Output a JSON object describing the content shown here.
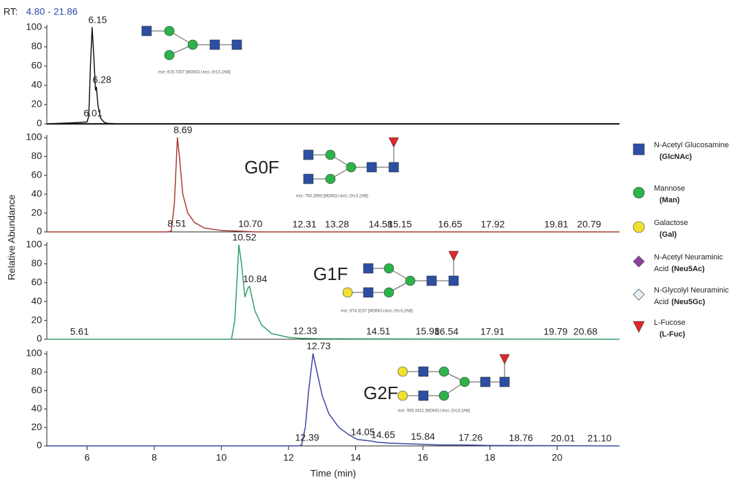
{
  "header": {
    "rt_prefix": "RT:",
    "rt_range": "4.80 - 21.86"
  },
  "y_axis_label": "Relative Abundance",
  "chart_data": [
    {
      "type": "line",
      "color": "#111111",
      "xlim": [
        4.8,
        21.86
      ],
      "ylim": [
        0,
        100
      ],
      "yticks": [
        0,
        20,
        40,
        60,
        80,
        100
      ],
      "x": [
        4.8,
        5.5,
        6.0,
        6.05,
        6.1,
        6.15,
        6.2,
        6.25,
        6.28,
        6.32,
        6.4,
        6.5,
        6.6,
        7.0,
        21.86
      ],
      "values": [
        0,
        1,
        2,
        8,
        60,
        100,
        70,
        35,
        38,
        20,
        6,
        2,
        0.5,
        0,
        0
      ],
      "peaks": [
        6.01,
        6.15,
        6.28
      ],
      "structure_note": "m/z: 615.7307 [MONO,Uncl,-2H,0,2AB]"
    },
    {
      "type": "line",
      "color": "#a33a33",
      "xlim": [
        4.8,
        21.86
      ],
      "ylim": [
        0,
        100
      ],
      "yticks": [
        0,
        20,
        40,
        60,
        80,
        100
      ],
      "x": [
        4.8,
        8.4,
        8.51,
        8.6,
        8.69,
        8.75,
        8.85,
        9.0,
        9.2,
        9.5,
        10.0,
        10.7,
        11.0,
        21.86
      ],
      "values": [
        0,
        0,
        1,
        30,
        100,
        80,
        40,
        20,
        10,
        4,
        1.5,
        0.5,
        0,
        0
      ],
      "peaks": [
        8.51,
        8.69,
        {
          "value": 10.7,
          "label": "10.70"
        },
        12.31,
        13.28,
        14.58,
        15.15,
        16.65,
        17.92,
        19.81,
        20.79
      ],
      "name": "G0F",
      "structure_note": "m/z: 793.2893 [MONO,Uncl,-2H,0,2AB]"
    },
    {
      "type": "line",
      "color": "#2e9e66",
      "xlim": [
        4.8,
        21.86
      ],
      "ylim": [
        0,
        100
      ],
      "yticks": [
        0,
        20,
        40,
        60,
        80,
        100
      ],
      "x": [
        4.8,
        10.3,
        10.4,
        10.52,
        10.6,
        10.7,
        10.8,
        10.84,
        11.0,
        11.2,
        11.5,
        12.0,
        12.33,
        13.0,
        21.86
      ],
      "values": [
        0,
        0,
        20,
        100,
        80,
        45,
        55,
        56,
        30,
        15,
        6,
        2,
        1,
        0.5,
        0
      ],
      "peaks": [
        5.61,
        10.52,
        10.84,
        12.33,
        14.51,
        15.98,
        16.54,
        17.91,
        19.79,
        20.68
      ],
      "name": "G1F",
      "structure_note": "m/z: 874.3157 [MONO,Uncl,-2H,0,2AB]"
    },
    {
      "type": "line",
      "color": "#3a46a0",
      "xlim": [
        4.8,
        21.86
      ],
      "ylim": [
        0,
        100
      ],
      "yticks": [
        0,
        20,
        40,
        60,
        80,
        100
      ],
      "x": [
        4.8,
        12.3,
        12.39,
        12.5,
        12.6,
        12.73,
        12.85,
        13.0,
        13.2,
        13.5,
        13.8,
        14.05,
        14.5,
        14.65,
        15.0,
        15.84,
        16.5,
        17.26,
        18.0,
        21.86
      ],
      "values": [
        0,
        0,
        1,
        20,
        60,
        100,
        80,
        55,
        35,
        20,
        12,
        7,
        5,
        4,
        3,
        2,
        1,
        1,
        0.5,
        0
      ],
      "peaks": [
        12.39,
        12.73,
        14.05,
        14.65,
        15.84,
        17.26,
        18.76,
        20.01,
        {
          "value": 21.1,
          "label": "21.10"
        }
      ],
      "name": "G2F",
      "structure_note": "m/z: 955.3421 [MONO,Uncl,-2H,0,2AB]",
      "xticks": [
        6,
        8,
        10,
        12,
        14,
        16,
        18,
        20
      ],
      "xlabel": "Time (min)"
    }
  ],
  "legend": [
    {
      "text": "N-Acetyl Glucosamine",
      "abbr": "(GlcNAc)",
      "shape": "square",
      "color": "#2c4fa3"
    },
    {
      "text": "Mannose",
      "abbr": "(Man)",
      "shape": "circle",
      "color": "#2db34a"
    },
    {
      "text": "Galactose",
      "abbr": "(Gal)",
      "shape": "circle",
      "color": "#f0e030"
    },
    {
      "text": "N-Acetyl Neuraminic",
      "text2": "Acid",
      "abbr": "(Neu5Ac)",
      "shape": "diamond",
      "color": "#8e3fa0"
    },
    {
      "text": "N-Glycolyl Neuraminic",
      "text2": "Acid",
      "abbr": "(Neu5Gc)",
      "shape": "diamond",
      "color": "#e2f2f6"
    },
    {
      "text": "L-Fucose",
      "abbr": "(L-Fuc)",
      "shape": "triangle",
      "color": "#e0262a"
    }
  ]
}
